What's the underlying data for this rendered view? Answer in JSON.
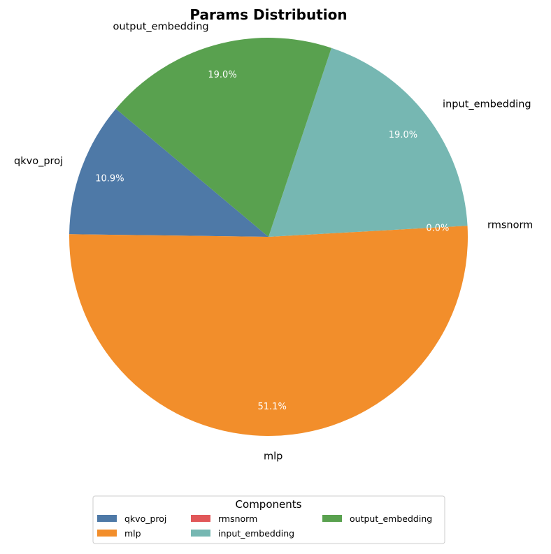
{
  "chart_data": {
    "type": "pie",
    "title": "Params Distribution",
    "categories": [
      "qkvo_proj",
      "mlp",
      "rmsnorm",
      "input_embedding",
      "output_embedding"
    ],
    "values": [
      10.9,
      51.1,
      0.0,
      19.0,
      19.0
    ],
    "value_labels": [
      "10.9%",
      "51.1%",
      "0.0%",
      "19.0%",
      "19.0%"
    ],
    "colors": [
      "#4e79a7",
      "#f28e2b",
      "#e15759",
      "#76b7b2",
      "#59a14f"
    ],
    "start_angle_deg": 140,
    "direction": "counterclockwise",
    "legend": {
      "title": "Components",
      "placement": "bottom-center",
      "columns": 3
    }
  }
}
